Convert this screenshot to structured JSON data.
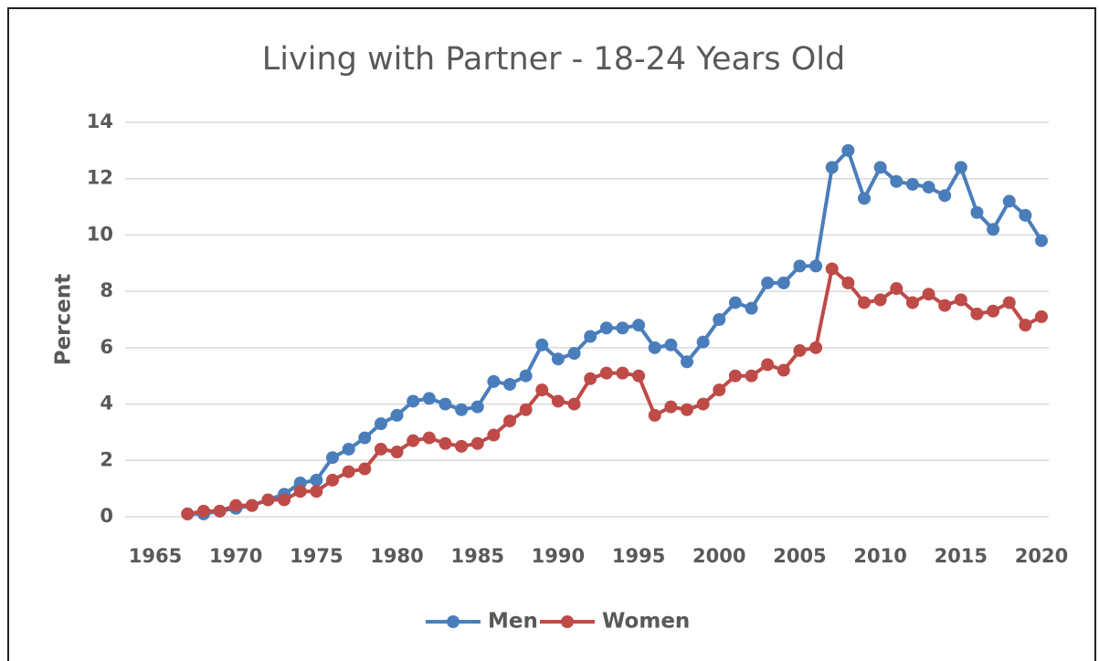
{
  "chart_data": {
    "type": "line",
    "title": "Living with Partner - 18-24 Years Old",
    "y_label": "Percent",
    "x": [
      1967,
      1968,
      1969,
      1970,
      1971,
      1972,
      1973,
      1974,
      1975,
      1976,
      1977,
      1978,
      1979,
      1980,
      1981,
      1982,
      1983,
      1984,
      1985,
      1986,
      1987,
      1988,
      1989,
      1990,
      1991,
      1992,
      1993,
      1994,
      1995,
      1996,
      1997,
      1998,
      1999,
      2000,
      2001,
      2002,
      2003,
      2004,
      2005,
      2006,
      2007,
      2008,
      2009,
      2010,
      2011,
      2012,
      2013,
      2014,
      2015,
      2016,
      2017,
      2018,
      2019,
      2020
    ],
    "series": [
      {
        "name": "Men",
        "color": "#4a7ebb",
        "values": [
          0.1,
          0.1,
          0.2,
          0.3,
          0.4,
          0.6,
          0.8,
          1.2,
          1.3,
          2.1,
          2.4,
          2.8,
          3.3,
          3.6,
          4.1,
          4.2,
          4.0,
          3.8,
          3.9,
          4.8,
          4.7,
          5.0,
          6.1,
          5.6,
          5.8,
          6.4,
          6.7,
          6.7,
          6.8,
          6.0,
          6.1,
          5.5,
          6.2,
          7.0,
          7.6,
          7.4,
          8.3,
          8.3,
          8.9,
          8.9,
          12.4,
          13.0,
          11.3,
          12.4,
          11.9,
          11.8,
          11.7,
          11.4,
          12.4,
          10.8,
          10.2,
          11.2,
          10.7,
          9.8
        ]
      },
      {
        "name": "Women",
        "color": "#be4b48",
        "values": [
          0.1,
          0.2,
          0.2,
          0.4,
          0.4,
          0.6,
          0.6,
          0.9,
          0.9,
          1.3,
          1.6,
          1.7,
          2.4,
          2.3,
          2.7,
          2.8,
          2.6,
          2.5,
          2.6,
          2.9,
          3.4,
          3.8,
          4.5,
          4.1,
          4.0,
          4.9,
          5.1,
          5.1,
          5.0,
          3.6,
          3.9,
          3.8,
          4.0,
          4.5,
          5.0,
          5.0,
          5.4,
          5.2,
          5.9,
          6.0,
          8.8,
          8.3,
          7.6,
          7.7,
          8.1,
          7.6,
          7.9,
          7.5,
          7.7,
          7.2,
          7.3,
          7.6,
          6.8,
          7.1
        ]
      }
    ],
    "xlim": [
      1965,
      2020
    ],
    "xticks": [
      1965,
      1970,
      1975,
      1980,
      1985,
      1990,
      1995,
      2000,
      2005,
      2010,
      2015,
      2020
    ],
    "ylim": [
      0,
      14
    ],
    "yticks": [
      0,
      2,
      4,
      6,
      8,
      10,
      12,
      14
    ],
    "grid": true,
    "legend": "bottom"
  }
}
